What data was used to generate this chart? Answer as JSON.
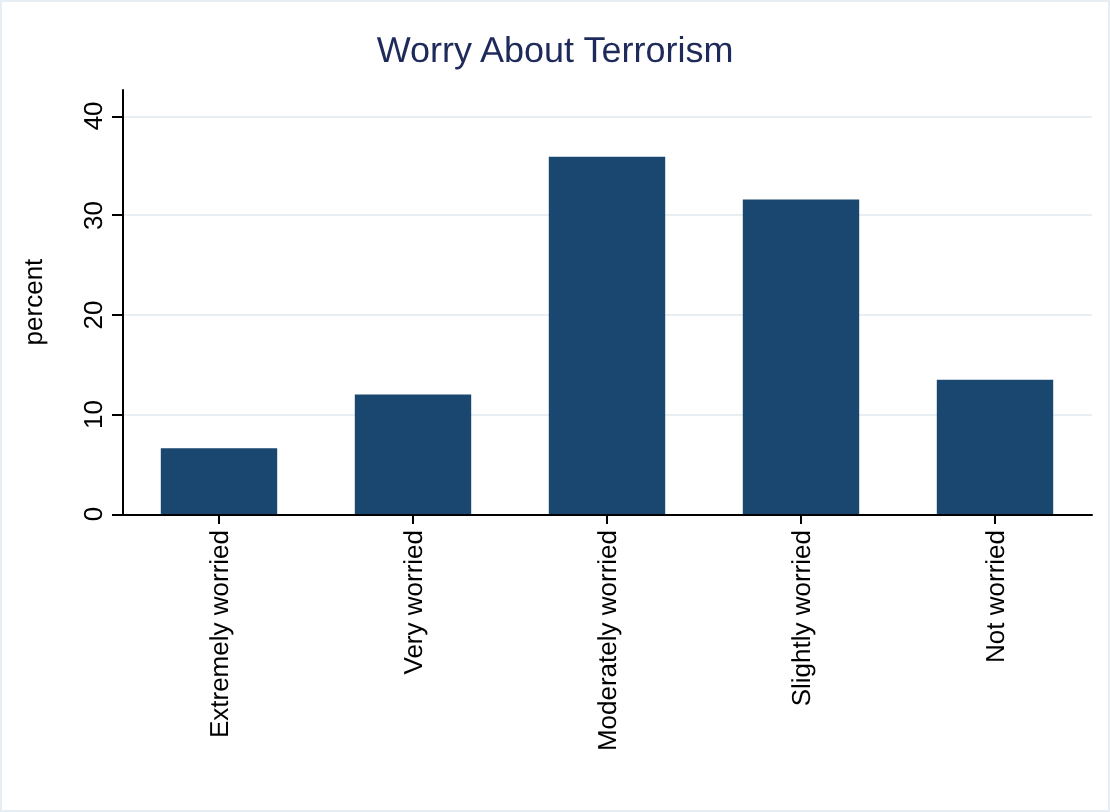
{
  "chart_data": {
    "type": "bar",
    "title": "Worry About Terrorism",
    "ylabel": "percent",
    "categories": [
      "Extremely worried",
      "Very worried",
      "Moderately worried",
      "Slightly worried",
      "Not worried"
    ],
    "values": [
      6.6,
      12.0,
      35.9,
      31.6,
      13.5
    ],
    "color": "#1a476f",
    "ylim": [
      0,
      42.6
    ],
    "yticks": [
      0,
      10,
      20,
      30,
      40
    ],
    "grid": "y"
  }
}
